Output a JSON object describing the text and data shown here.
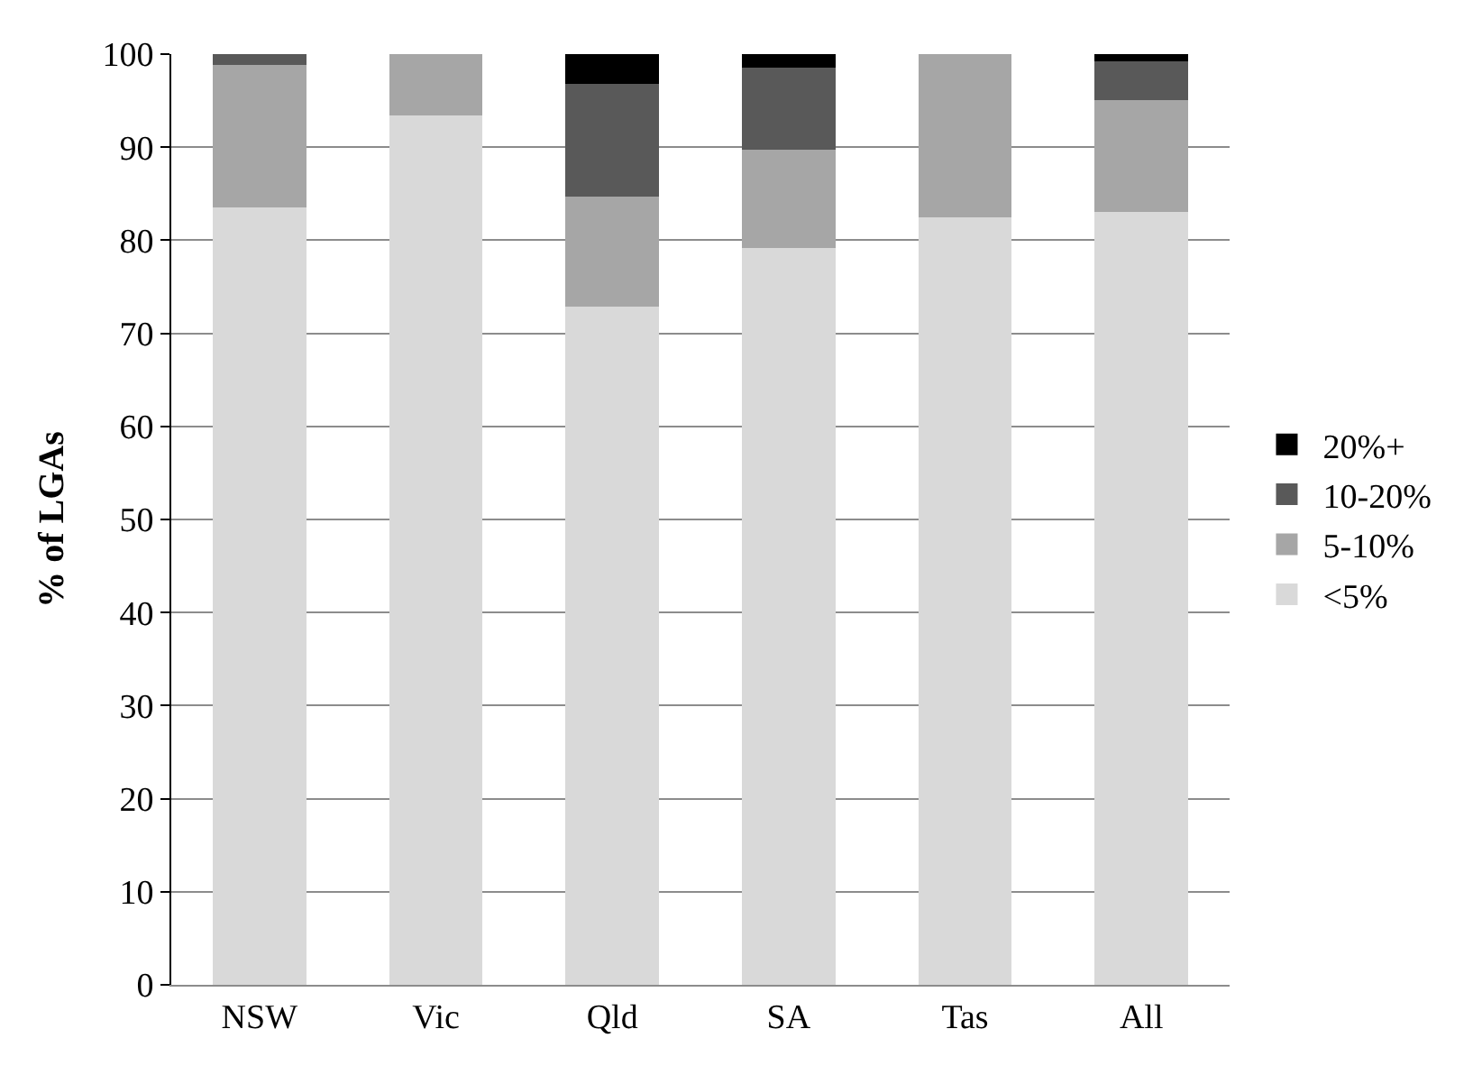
{
  "chart_data": {
    "type": "bar",
    "stacked": true,
    "ylabel": "% of LGAs",
    "categories": [
      "NSW",
      "Vic",
      "Qld",
      "SA",
      "Tas",
      "All"
    ],
    "series": [
      {
        "name": "<5%",
        "color": "#d9d9d9",
        "values": [
          83.5,
          93.4,
          72.9,
          79.2,
          82.5,
          83.0
        ]
      },
      {
        "name": "5-10%",
        "color": "#a6a6a6",
        "values": [
          15.3,
          6.6,
          11.8,
          10.5,
          17.5,
          12.1
        ]
      },
      {
        "name": "10-20%",
        "color": "#595959",
        "values": [
          1.2,
          0,
          12.1,
          8.8,
          0,
          4.1
        ]
      },
      {
        "name": "20%+",
        "color": "#000000",
        "values": [
          0,
          0,
          3.2,
          1.5,
          0,
          0.8
        ]
      }
    ],
    "ylim": [
      0,
      100
    ],
    "yticks": [
      0,
      10,
      20,
      30,
      40,
      50,
      60,
      70,
      80,
      90,
      100
    ],
    "grid": "y",
    "legend": "right"
  }
}
